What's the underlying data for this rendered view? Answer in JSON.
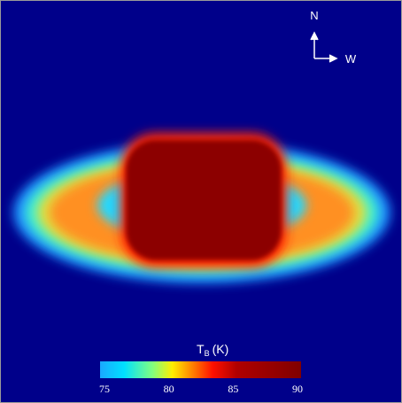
{
  "compass": {
    "north": "N",
    "west": "W"
  },
  "colorbar": {
    "label": "T",
    "label_subscript": "B",
    "label_unit": "(K)",
    "range": [
      75,
      90
    ],
    "ticks": [
      75,
      80,
      85,
      90
    ]
  }
}
